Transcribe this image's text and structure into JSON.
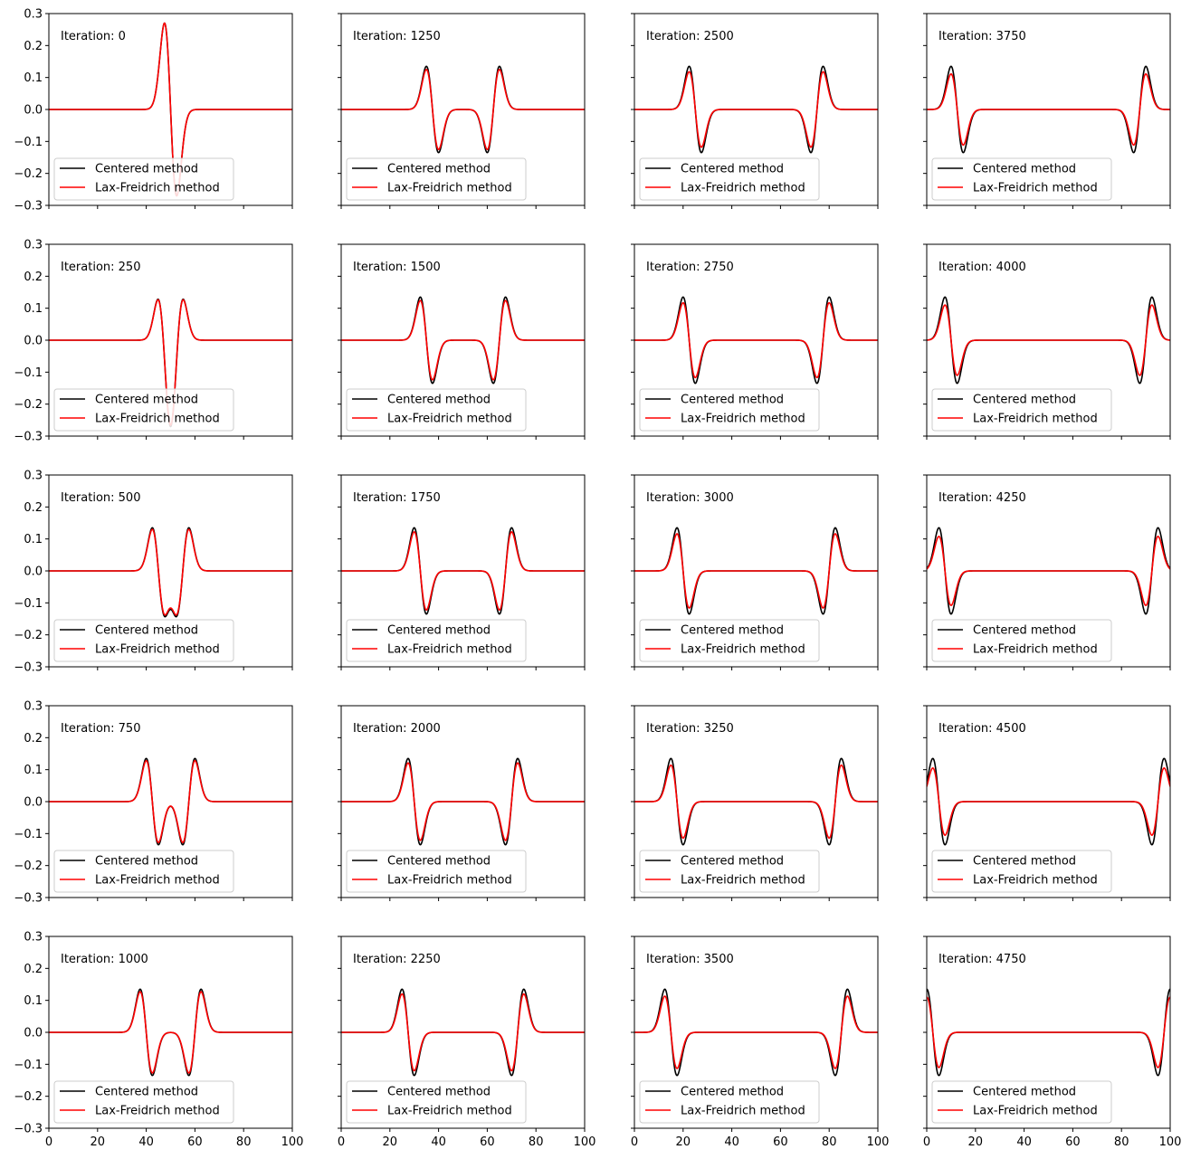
{
  "figure": {
    "legend_labels": [
      "Centered method",
      "Lax-Freidrich method"
    ],
    "colors": {
      "centered": "#000000",
      "lax": "#ff0000",
      "axes": "#000000",
      "legend_border": "#cccccc"
    }
  },
  "chart_data": [
    {
      "type": "line",
      "annotation": "Iteration: 0",
      "xlim": [
        0,
        100
      ],
      "ylim": [
        -0.3,
        0.3
      ],
      "grid": false,
      "legend_position": "lower-left",
      "series": [
        {
          "name": "Centered method",
          "color": "#000000",
          "pulses": [
            {
              "center": 50,
              "sign": 1,
              "amp": 0.27,
              "wide": true
            }
          ]
        },
        {
          "name": "Lax-Freidrich method",
          "color": "#ff0000",
          "pulses": [
            {
              "center": 50,
              "sign": 1,
              "amp": 0.27,
              "wide": true
            }
          ]
        }
      ]
    },
    {
      "type": "line",
      "annotation": "Iteration: 250",
      "xlim": [
        0,
        100
      ],
      "ylim": [
        -0.3,
        0.3
      ],
      "grid": false,
      "legend_position": "lower-left",
      "series": [
        {
          "name": "Centered method",
          "color": "#000000",
          "pulses": [
            {
              "center": 47.5,
              "sign": 1,
              "amp": 0.135
            },
            {
              "center": 52.5,
              "sign": -1,
              "amp": 0.135
            }
          ]
        },
        {
          "name": "Lax-Freidrich method",
          "color": "#ff0000",
          "pulses": [
            {
              "center": 47.5,
              "sign": 1,
              "amp": 0.133
            },
            {
              "center": 52.5,
              "sign": -1,
              "amp": 0.133
            }
          ]
        }
      ]
    },
    {
      "type": "line",
      "annotation": "Iteration: 500",
      "xlim": [
        0,
        100
      ],
      "ylim": [
        -0.3,
        0.3
      ],
      "grid": false,
      "legend_position": "lower-left",
      "series": [
        {
          "name": "Centered method",
          "color": "#000000",
          "pulses": [
            {
              "center": 45,
              "sign": 1,
              "amp": 0.135
            },
            {
              "center": 55,
              "sign": -1,
              "amp": 0.135
            }
          ]
        },
        {
          "name": "Lax-Freidrich method",
          "color": "#ff0000",
          "pulses": [
            {
              "center": 45,
              "sign": 1,
              "amp": 0.13
            },
            {
              "center": 55,
              "sign": -1,
              "amp": 0.13
            }
          ]
        }
      ]
    },
    {
      "type": "line",
      "annotation": "Iteration: 750",
      "xlim": [
        0,
        100
      ],
      "ylim": [
        -0.3,
        0.3
      ],
      "grid": false,
      "legend_position": "lower-left",
      "series": [
        {
          "name": "Centered method",
          "color": "#000000",
          "pulses": [
            {
              "center": 42.5,
              "sign": 1,
              "amp": 0.135
            },
            {
              "center": 57.5,
              "sign": -1,
              "amp": 0.135
            }
          ]
        },
        {
          "name": "Lax-Freidrich method",
          "color": "#ff0000",
          "pulses": [
            {
              "center": 42.5,
              "sign": 1,
              "amp": 0.128
            },
            {
              "center": 57.5,
              "sign": -1,
              "amp": 0.128
            }
          ]
        }
      ]
    },
    {
      "type": "line",
      "annotation": "Iteration: 1000",
      "xlim": [
        0,
        100
      ],
      "ylim": [
        -0.3,
        0.3
      ],
      "grid": false,
      "legend_position": "lower-left",
      "series": [
        {
          "name": "Centered method",
          "color": "#000000",
          "pulses": [
            {
              "center": 40,
              "sign": 1,
              "amp": 0.135
            },
            {
              "center": 60,
              "sign": -1,
              "amp": 0.135
            }
          ]
        },
        {
          "name": "Lax-Freidrich method",
          "color": "#ff0000",
          "pulses": [
            {
              "center": 40,
              "sign": 1,
              "amp": 0.127
            },
            {
              "center": 60,
              "sign": -1,
              "amp": 0.127
            }
          ]
        }
      ]
    },
    {
      "type": "line",
      "annotation": "Iteration: 1250",
      "xlim": [
        0,
        100
      ],
      "ylim": [
        -0.3,
        0.3
      ],
      "grid": false,
      "legend_position": "lower-left",
      "series": [
        {
          "name": "Centered method",
          "color": "#000000",
          "pulses": [
            {
              "center": 37.5,
              "sign": 1,
              "amp": 0.135
            },
            {
              "center": 62.5,
              "sign": -1,
              "amp": 0.135
            }
          ]
        },
        {
          "name": "Lax-Freidrich method",
          "color": "#ff0000",
          "pulses": [
            {
              "center": 37.5,
              "sign": 1,
              "amp": 0.125
            },
            {
              "center": 62.5,
              "sign": -1,
              "amp": 0.125
            }
          ]
        }
      ]
    },
    {
      "type": "line",
      "annotation": "Iteration: 1500",
      "xlim": [
        0,
        100
      ],
      "ylim": [
        -0.3,
        0.3
      ],
      "grid": false,
      "legend_position": "lower-left",
      "series": [
        {
          "name": "Centered method",
          "color": "#000000",
          "pulses": [
            {
              "center": 35,
              "sign": 1,
              "amp": 0.135
            },
            {
              "center": 65,
              "sign": -1,
              "amp": 0.135
            }
          ]
        },
        {
          "name": "Lax-Freidrich method",
          "color": "#ff0000",
          "pulses": [
            {
              "center": 35,
              "sign": 1,
              "amp": 0.124
            },
            {
              "center": 65,
              "sign": -1,
              "amp": 0.124
            }
          ]
        }
      ]
    },
    {
      "type": "line",
      "annotation": "Iteration: 1750",
      "xlim": [
        0,
        100
      ],
      "ylim": [
        -0.3,
        0.3
      ],
      "grid": false,
      "legend_position": "lower-left",
      "series": [
        {
          "name": "Centered method",
          "color": "#000000",
          "pulses": [
            {
              "center": 32.5,
              "sign": 1,
              "amp": 0.135
            },
            {
              "center": 67.5,
              "sign": -1,
              "amp": 0.135
            }
          ]
        },
        {
          "name": "Lax-Freidrich method",
          "color": "#ff0000",
          "pulses": [
            {
              "center": 32.5,
              "sign": 1,
              "amp": 0.122
            },
            {
              "center": 67.5,
              "sign": -1,
              "amp": 0.122
            }
          ]
        }
      ]
    },
    {
      "type": "line",
      "annotation": "Iteration: 2000",
      "xlim": [
        0,
        100
      ],
      "ylim": [
        -0.3,
        0.3
      ],
      "grid": false,
      "legend_position": "lower-left",
      "series": [
        {
          "name": "Centered method",
          "color": "#000000",
          "pulses": [
            {
              "center": 30,
              "sign": 1,
              "amp": 0.135
            },
            {
              "center": 70,
              "sign": -1,
              "amp": 0.135
            }
          ]
        },
        {
          "name": "Lax-Freidrich method",
          "color": "#ff0000",
          "pulses": [
            {
              "center": 30,
              "sign": 1,
              "amp": 0.121
            },
            {
              "center": 70,
              "sign": -1,
              "amp": 0.121
            }
          ]
        }
      ]
    },
    {
      "type": "line",
      "annotation": "Iteration: 2250",
      "xlim": [
        0,
        100
      ],
      "ylim": [
        -0.3,
        0.3
      ],
      "grid": false,
      "legend_position": "lower-left",
      "series": [
        {
          "name": "Centered method",
          "color": "#000000",
          "pulses": [
            {
              "center": 27.5,
              "sign": 1,
              "amp": 0.135
            },
            {
              "center": 72.5,
              "sign": -1,
              "amp": 0.135
            }
          ]
        },
        {
          "name": "Lax-Freidrich method",
          "color": "#ff0000",
          "pulses": [
            {
              "center": 27.5,
              "sign": 1,
              "amp": 0.12
            },
            {
              "center": 72.5,
              "sign": -1,
              "amp": 0.12
            }
          ]
        }
      ]
    },
    {
      "type": "line",
      "annotation": "Iteration: 2500",
      "xlim": [
        0,
        100
      ],
      "ylim": [
        -0.3,
        0.3
      ],
      "grid": false,
      "legend_position": "lower-left",
      "series": [
        {
          "name": "Centered method",
          "color": "#000000",
          "pulses": [
            {
              "center": 25,
              "sign": 1,
              "amp": 0.135
            },
            {
              "center": 75,
              "sign": -1,
              "amp": 0.135
            }
          ]
        },
        {
          "name": "Lax-Freidrich method",
          "color": "#ff0000",
          "pulses": [
            {
              "center": 25,
              "sign": 1,
              "amp": 0.118
            },
            {
              "center": 75,
              "sign": -1,
              "amp": 0.118
            }
          ]
        }
      ]
    },
    {
      "type": "line",
      "annotation": "Iteration: 2750",
      "xlim": [
        0,
        100
      ],
      "ylim": [
        -0.3,
        0.3
      ],
      "grid": false,
      "legend_position": "lower-left",
      "series": [
        {
          "name": "Centered method",
          "color": "#000000",
          "pulses": [
            {
              "center": 22.5,
              "sign": 1,
              "amp": 0.135
            },
            {
              "center": 77.5,
              "sign": -1,
              "amp": 0.135
            }
          ]
        },
        {
          "name": "Lax-Freidrich method",
          "color": "#ff0000",
          "pulses": [
            {
              "center": 22.5,
              "sign": 1,
              "amp": 0.117
            },
            {
              "center": 77.5,
              "sign": -1,
              "amp": 0.117
            }
          ]
        }
      ]
    },
    {
      "type": "line",
      "annotation": "Iteration: 3000",
      "xlim": [
        0,
        100
      ],
      "ylim": [
        -0.3,
        0.3
      ],
      "grid": false,
      "legend_position": "lower-left",
      "series": [
        {
          "name": "Centered method",
          "color": "#000000",
          "pulses": [
            {
              "center": 20,
              "sign": 1,
              "amp": 0.135
            },
            {
              "center": 80,
              "sign": -1,
              "amp": 0.135
            }
          ]
        },
        {
          "name": "Lax-Freidrich method",
          "color": "#ff0000",
          "pulses": [
            {
              "center": 20,
              "sign": 1,
              "amp": 0.116
            },
            {
              "center": 80,
              "sign": -1,
              "amp": 0.116
            }
          ]
        }
      ]
    },
    {
      "type": "line",
      "annotation": "Iteration: 3250",
      "xlim": [
        0,
        100
      ],
      "ylim": [
        -0.3,
        0.3
      ],
      "grid": false,
      "legend_position": "lower-left",
      "series": [
        {
          "name": "Centered method",
          "color": "#000000",
          "pulses": [
            {
              "center": 17.5,
              "sign": 1,
              "amp": 0.135
            },
            {
              "center": 82.5,
              "sign": -1,
              "amp": 0.135
            }
          ]
        },
        {
          "name": "Lax-Freidrich method",
          "color": "#ff0000",
          "pulses": [
            {
              "center": 17.5,
              "sign": 1,
              "amp": 0.114
            },
            {
              "center": 82.5,
              "sign": -1,
              "amp": 0.114
            }
          ]
        }
      ]
    },
    {
      "type": "line",
      "annotation": "Iteration: 3500",
      "xlim": [
        0,
        100
      ],
      "ylim": [
        -0.3,
        0.3
      ],
      "grid": false,
      "legend_position": "lower-left",
      "series": [
        {
          "name": "Centered method",
          "color": "#000000",
          "pulses": [
            {
              "center": 15,
              "sign": 1,
              "amp": 0.135
            },
            {
              "center": 85,
              "sign": -1,
              "amp": 0.135
            }
          ]
        },
        {
          "name": "Lax-Freidrich method",
          "color": "#ff0000",
          "pulses": [
            {
              "center": 15,
              "sign": 1,
              "amp": 0.113
            },
            {
              "center": 85,
              "sign": -1,
              "amp": 0.113
            }
          ]
        }
      ]
    },
    {
      "type": "line",
      "annotation": "Iteration: 3750",
      "xlim": [
        0,
        100
      ],
      "ylim": [
        -0.3,
        0.3
      ],
      "grid": false,
      "legend_position": "lower-left",
      "series": [
        {
          "name": "Centered method",
          "color": "#000000",
          "pulses": [
            {
              "center": 12.5,
              "sign": 1,
              "amp": 0.135
            },
            {
              "center": 87.5,
              "sign": -1,
              "amp": 0.135
            }
          ]
        },
        {
          "name": "Lax-Freidrich method",
          "color": "#ff0000",
          "pulses": [
            {
              "center": 12.5,
              "sign": 1,
              "amp": 0.111
            },
            {
              "center": 87.5,
              "sign": -1,
              "amp": 0.111
            }
          ]
        }
      ]
    },
    {
      "type": "line",
      "annotation": "Iteration: 4000",
      "xlim": [
        0,
        100
      ],
      "ylim": [
        -0.3,
        0.3
      ],
      "grid": false,
      "legend_position": "lower-left",
      "series": [
        {
          "name": "Centered method",
          "color": "#000000",
          "pulses": [
            {
              "center": 10,
              "sign": 1,
              "amp": 0.135
            },
            {
              "center": 90,
              "sign": -1,
              "amp": 0.135
            }
          ]
        },
        {
          "name": "Lax-Freidrich method",
          "color": "#ff0000",
          "pulses": [
            {
              "center": 10,
              "sign": 1,
              "amp": 0.11
            },
            {
              "center": 90,
              "sign": -1,
              "amp": 0.11
            }
          ]
        }
      ]
    },
    {
      "type": "line",
      "annotation": "Iteration: 4250",
      "xlim": [
        0,
        100
      ],
      "ylim": [
        -0.3,
        0.3
      ],
      "grid": false,
      "legend_position": "lower-left",
      "series": [
        {
          "name": "Centered method",
          "color": "#000000",
          "pulses": [
            {
              "center": 7.5,
              "sign": 1,
              "amp": 0.135
            },
            {
              "center": 92.5,
              "sign": -1,
              "amp": 0.135
            }
          ]
        },
        {
          "name": "Lax-Freidrich method",
          "color": "#ff0000",
          "pulses": [
            {
              "center": 7.5,
              "sign": 1,
              "amp": 0.108
            },
            {
              "center": 92.5,
              "sign": -1,
              "amp": 0.108
            }
          ]
        }
      ]
    },
    {
      "type": "line",
      "annotation": "Iteration: 4500",
      "xlim": [
        0,
        100
      ],
      "ylim": [
        -0.3,
        0.3
      ],
      "grid": false,
      "legend_position": "lower-left",
      "series": [
        {
          "name": "Centered method",
          "color": "#000000",
          "pulses": [
            {
              "center": 5,
              "sign": 1,
              "amp": 0.135
            },
            {
              "center": 95,
              "sign": -1,
              "amp": 0.135
            }
          ]
        },
        {
          "name": "Lax-Freidrich method",
          "color": "#ff0000",
          "pulses": [
            {
              "center": 5,
              "sign": 1,
              "amp": 0.105
            },
            {
              "center": 95,
              "sign": -1,
              "amp": 0.105
            }
          ]
        }
      ]
    },
    {
      "type": "line",
      "annotation": "Iteration: 4750",
      "xlim": [
        0,
        100
      ],
      "ylim": [
        -0.3,
        0.3
      ],
      "grid": false,
      "legend_position": "lower-left",
      "series": [
        {
          "name": "Centered method",
          "color": "#000000",
          "pulses": [
            {
              "center": 2.5,
              "sign": 1,
              "amp": 0.135
            },
            {
              "center": 97.5,
              "sign": -1,
              "amp": 0.135
            }
          ]
        },
        {
          "name": "Lax-Freidrich method",
          "color": "#ff0000",
          "pulses": [
            {
              "center": 2.5,
              "sign": 1,
              "amp": 0.11
            },
            {
              "center": 97.5,
              "sign": -1,
              "amp": 0.11
            }
          ]
        }
      ]
    }
  ]
}
